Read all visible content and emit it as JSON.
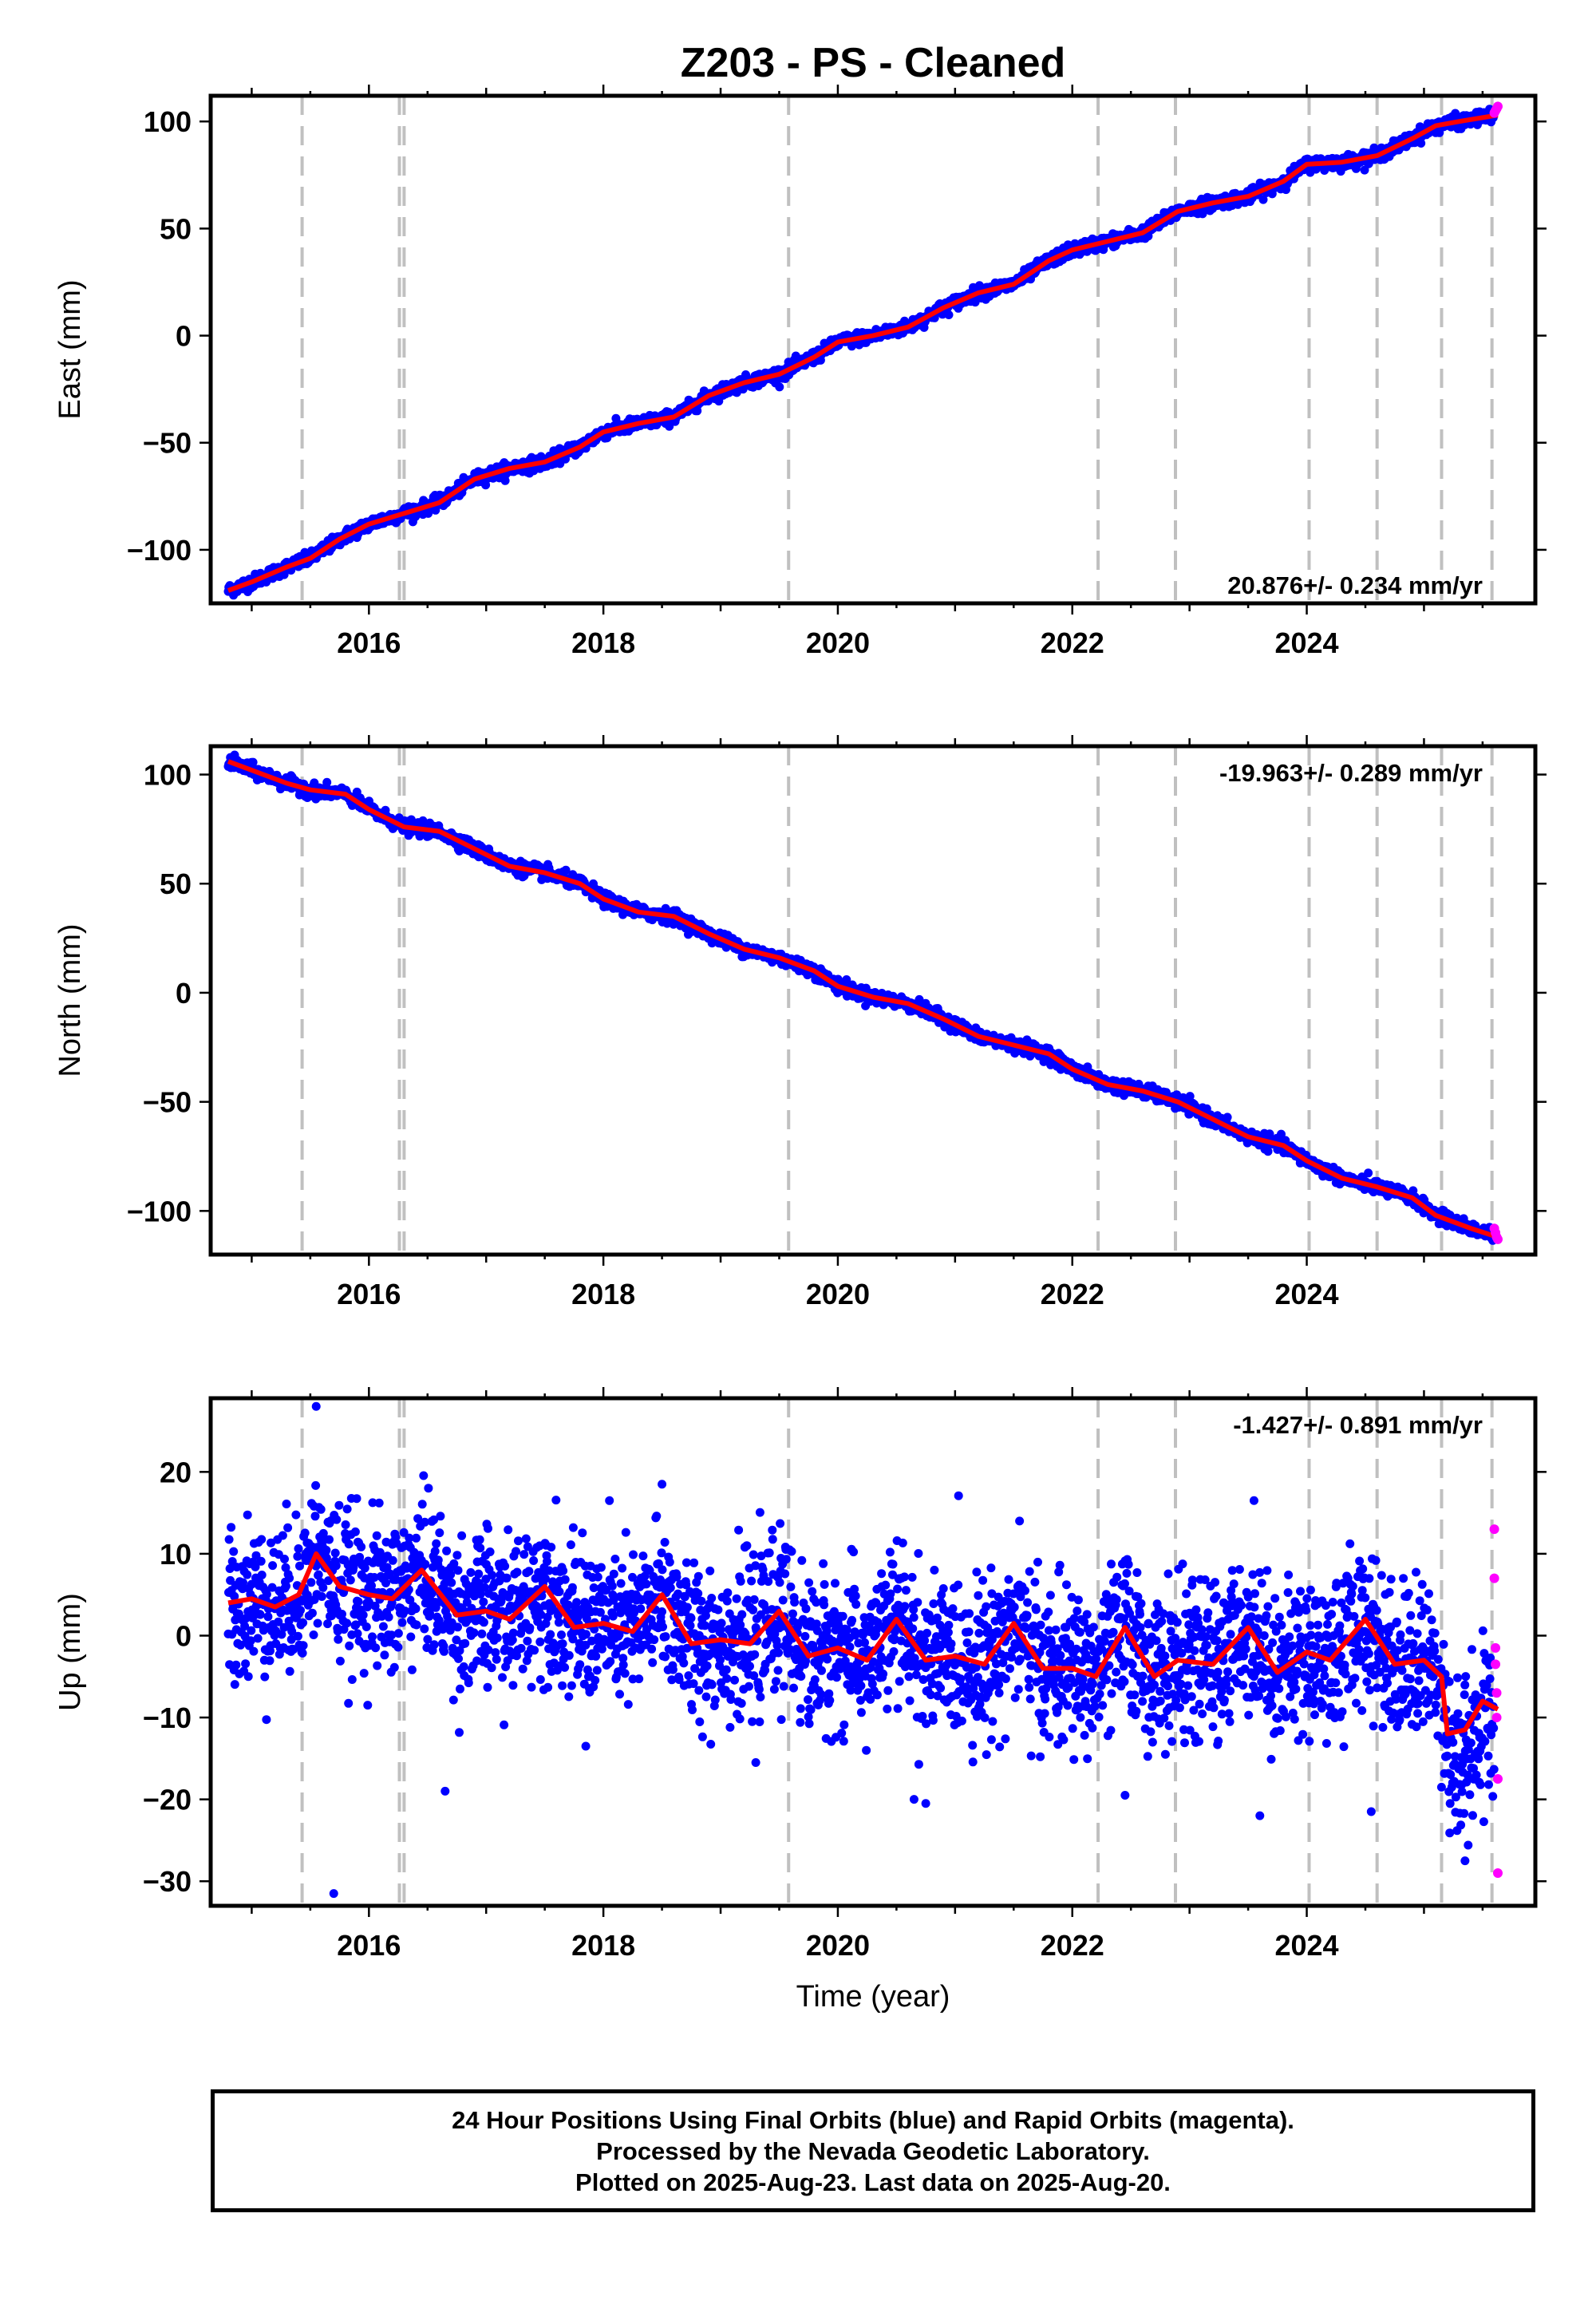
{
  "title": "Z203  - PS - Cleaned",
  "xlabel": "Time (year)",
  "colors": {
    "final_orbits": "#0000ff",
    "rapid_orbits": "#ff00ff",
    "model": "#ff0000",
    "event_lines": "#c0c0c0"
  },
  "footer": {
    "line1": "24 Hour Positions Using Final Orbits (blue) and Rapid Orbits (magenta).",
    "line2": "Processed by the Nevada Geodetic Laboratory.",
    "line3": "Plotted on 2025-Aug-23. Last data on 2025-Aug-20."
  },
  "chart_data": [
    {
      "type": "scatter",
      "component": "east",
      "ylabel": "East (mm)",
      "rate_label": "20.876+/- 0.234 mm/yr",
      "xlim": [
        2014.65,
        2025.95
      ],
      "ylim": [
        -125,
        112
      ],
      "xticks": [
        2016,
        2018,
        2020,
        2022,
        2024
      ],
      "yticks": [
        -100,
        -50,
        0,
        50,
        100
      ],
      "event_lines_x": [
        2015.43,
        2016.26,
        2016.3,
        2019.58,
        2022.22,
        2022.88,
        2024.02,
        2024.6,
        2025.15,
        2025.58
      ],
      "data_start": 2014.8,
      "data_end": 2025.63,
      "series": [
        {
          "name": "model",
          "x": [
            2014.8,
            2015.0,
            2015.3,
            2015.5,
            2015.75,
            2016.0,
            2016.3,
            2016.6,
            2016.9,
            2017.2,
            2017.5,
            2017.8,
            2018.0,
            2018.3,
            2018.6,
            2018.9,
            2019.2,
            2019.5,
            2019.8,
            2020.0,
            2020.3,
            2020.6,
            2020.9,
            2021.2,
            2021.5,
            2021.8,
            2022.0,
            2022.3,
            2022.6,
            2022.9,
            2023.2,
            2023.5,
            2023.8,
            2024.0,
            2024.3,
            2024.6,
            2024.9,
            2025.1,
            2025.3,
            2025.63
          ],
          "y": [
            -119,
            -115,
            -108,
            -104,
            -95,
            -88,
            -83,
            -78,
            -67,
            -62,
            -59,
            -52,
            -45,
            -41,
            -38,
            -28,
            -22,
            -18,
            -10,
            -3,
            0,
            4,
            13,
            20,
            24,
            35,
            40,
            44,
            48,
            58,
            62,
            65,
            72,
            80,
            81,
            84,
            92,
            98,
            100,
            103
          ]
        }
      ],
      "rapid_orbit_points": {
        "x": [
          2025.6,
          2025.61,
          2025.62,
          2025.63
        ],
        "y": [
          104,
          105,
          106,
          107
        ]
      }
    },
    {
      "type": "scatter",
      "component": "north",
      "ylabel": "North (mm)",
      "rate_label": "-19.963+/- 0.289 mm/yr",
      "xlim": [
        2014.65,
        2025.95
      ],
      "ylim": [
        -120,
        113
      ],
      "xticks": [
        2016,
        2018,
        2020,
        2022,
        2024
      ],
      "yticks": [
        -100,
        -50,
        0,
        50,
        100
      ],
      "event_lines_x": [
        2015.43,
        2016.26,
        2016.3,
        2019.58,
        2022.22,
        2022.88,
        2024.02,
        2024.6,
        2025.15,
        2025.58
      ],
      "data_start": 2014.8,
      "data_end": 2025.63,
      "series": [
        {
          "name": "model",
          "x": [
            2014.8,
            2015.0,
            2015.3,
            2015.5,
            2015.8,
            2016.0,
            2016.3,
            2016.6,
            2016.9,
            2017.2,
            2017.5,
            2017.8,
            2018.0,
            2018.3,
            2018.6,
            2018.9,
            2019.2,
            2019.5,
            2019.8,
            2020.0,
            2020.3,
            2020.6,
            2020.9,
            2021.2,
            2021.5,
            2021.8,
            2022.0,
            2022.3,
            2022.6,
            2022.9,
            2023.2,
            2023.5,
            2023.8,
            2024.0,
            2024.3,
            2024.6,
            2024.9,
            2025.1,
            2025.4,
            2025.63
          ],
          "y": [
            106,
            102,
            96,
            93,
            91,
            84,
            76,
            74,
            66,
            58,
            55,
            50,
            43,
            37,
            35,
            27,
            20,
            16,
            10,
            3,
            -2,
            -5,
            -12,
            -20,
            -24,
            -28,
            -35,
            -42,
            -45,
            -50,
            -58,
            -66,
            -70,
            -77,
            -85,
            -89,
            -94,
            -102,
            -108,
            -112
          ]
        }
      ],
      "rapid_orbit_points": {
        "x": [
          2025.6,
          2025.61,
          2025.62,
          2025.63
        ],
        "y": [
          -108,
          -110,
          -112,
          -113
        ]
      }
    },
    {
      "type": "scatter",
      "component": "up",
      "ylabel": "Up (mm)",
      "rate_label": "-1.427+/- 0.891 mm/yr",
      "xlim": [
        2014.65,
        2025.95
      ],
      "ylim": [
        -33,
        29
      ],
      "xticks": [
        2016,
        2018,
        2020,
        2022,
        2024
      ],
      "yticks": [
        -30,
        -20,
        -10,
        0,
        10,
        20
      ],
      "event_lines_x": [
        2015.43,
        2016.26,
        2016.3,
        2019.58,
        2022.22,
        2022.88,
        2024.02,
        2024.6,
        2025.15,
        2025.58
      ],
      "data_start": 2014.8,
      "data_end": 2025.63,
      "series": [
        {
          "name": "model",
          "x": [
            2014.8,
            2015.0,
            2015.2,
            2015.4,
            2015.55,
            2015.75,
            2016.0,
            2016.2,
            2016.45,
            2016.75,
            2017.0,
            2017.2,
            2017.5,
            2017.75,
            2018.0,
            2018.25,
            2018.5,
            2018.75,
            2019.0,
            2019.25,
            2019.5,
            2019.75,
            2020.0,
            2020.25,
            2020.5,
            2020.75,
            2021.0,
            2021.25,
            2021.5,
            2021.75,
            2022.0,
            2022.2,
            2022.45,
            2022.7,
            2022.9,
            2023.2,
            2023.5,
            2023.75,
            2024.0,
            2024.2,
            2024.5,
            2024.75,
            2025.0,
            2025.15,
            2025.2,
            2025.35,
            2025.5,
            2025.63
          ],
          "y": [
            4,
            4.5,
            3.5,
            5,
            10,
            6,
            5,
            4.5,
            8,
            2.5,
            3,
            2,
            6,
            1,
            1.5,
            0.5,
            5,
            -1,
            -0.5,
            -1,
            3,
            -2.5,
            -1.5,
            -3,
            2,
            -3,
            -2.5,
            -3.5,
            1.5,
            -4,
            -4,
            -5,
            1,
            -5,
            -3,
            -3.5,
            1,
            -4.5,
            -2,
            -3,
            2,
            -3.5,
            -3,
            -5,
            -12,
            -11.5,
            -8,
            -9
          ]
        }
      ],
      "outliers": {
        "x": [
          2015.55,
          2015.7,
          2016.65,
          2017.85,
          2018.5,
          2019.3,
          2020.65,
          2020.75,
          2021.55,
          2022.45,
          2023.55,
          2023.6,
          2024.55,
          2025.35
        ],
        "y": [
          28,
          -31.5,
          -19,
          -13.5,
          18.5,
          -15.5,
          -20,
          -20.5,
          14,
          -19.5,
          16.5,
          -22,
          -21.5,
          -27.5
        ]
      },
      "rapid_orbit_points": {
        "x": [
          2025.6,
          2025.6,
          2025.61,
          2025.61,
          2025.62,
          2025.62,
          2025.63,
          2025.63
        ],
        "y": [
          13,
          7,
          -1.5,
          -3.5,
          -7,
          -10,
          -17.5,
          -29
        ]
      }
    }
  ]
}
